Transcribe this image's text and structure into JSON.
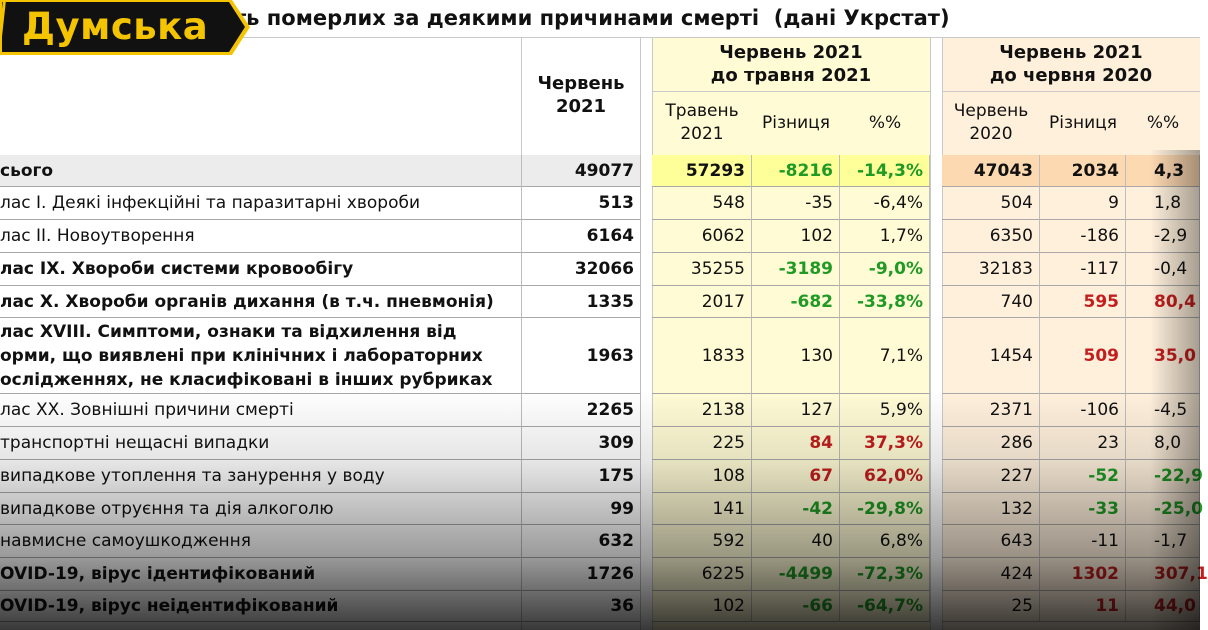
{
  "title": "ть померлих за деякими причинами смерті  (дані Укрстат)",
  "logo": {
    "text": "Думська",
    "text_color": "#f5c400",
    "bg_color": "#111111"
  },
  "colors": {
    "yellow_bg": "#fffbd5",
    "orange_bg": "#fff0dc",
    "total_yellow": "#ffff99",
    "total_orange": "#fdd9b2",
    "green": "#1f9a24",
    "red": "#c21e1e"
  },
  "header": {
    "col_june": "Червень\n2021",
    "group1": "Червень 2021\nдо травня 2021",
    "group1_sub": [
      "Травень\n2021",
      "Різниця",
      "%%"
    ],
    "group2": "Червень 2021\nдо червня 2020",
    "group2_sub": [
      "Червень\n2020",
      "Різниця",
      "%%"
    ]
  },
  "rows": [
    {
      "name": "сього",
      "bold": true,
      "total": true,
      "june": "49077",
      "may": "57293",
      "diff1": "-8216",
      "pct1": "-14,3%",
      "c1": "g",
      "june20": "47043",
      "diff2": "2034",
      "pct2": "4,3",
      "c2": ""
    },
    {
      "name": "лас I. Деякі інфекційні та паразитарні хвороби",
      "bold": false,
      "june": "513",
      "may": "548",
      "diff1": "-35",
      "pct1": "-6,4%",
      "c1": "",
      "june20": "504",
      "diff2": "9",
      "pct2": "1,8",
      "c2": ""
    },
    {
      "name": "лас II. Новоутворення",
      "bold": false,
      "june": "6164",
      "may": "6062",
      "diff1": "102",
      "pct1": "1,7%",
      "c1": "",
      "june20": "6350",
      "diff2": "-186",
      "pct2": "-2,9",
      "c2": ""
    },
    {
      "name": "лас IX. Хвороби системи кровообігу",
      "bold": true,
      "june": "32066",
      "may": "35255",
      "diff1": "-3189",
      "pct1": "-9,0%",
      "c1": "g",
      "june20": "32183",
      "diff2": "-117",
      "pct2": "-0,4",
      "c2": ""
    },
    {
      "name": "лас X. Хвороби органів дихання (в т.ч. пневмонія)",
      "bold": true,
      "june": "1335",
      "may": "2017",
      "diff1": "-682",
      "pct1": "-33,8%",
      "c1": "g",
      "june20": "740",
      "diff2": "595",
      "pct2": "80,4",
      "c2": "r"
    },
    {
      "name": "лас XVIII. Симптоми, ознаки та відхилення від\nорми, що виявлені при клінічних і лабораторних\nослідженнях, не класифіковані в інших рубриках",
      "bold": true,
      "june": "1963",
      "may": "1833",
      "diff1": "130",
      "pct1": "7,1%",
      "c1": "",
      "june20": "1454",
      "diff2": "509",
      "pct2": "35,0",
      "c2": "r"
    },
    {
      "name": "лас XX. Зовнішні причини смерті",
      "bold": false,
      "june": "2265",
      "may": "2138",
      "diff1": "127",
      "pct1": "5,9%",
      "c1": "",
      "june20": "2371",
      "diff2": "-106",
      "pct2": "-4,5",
      "c2": ""
    },
    {
      "name": "транспортні нещасні випадки",
      "bold": false,
      "june": "309",
      "may": "225",
      "diff1": "84",
      "pct1": "37,3%",
      "c1": "r",
      "june20": "286",
      "diff2": "23",
      "pct2": "8,0",
      "c2": ""
    },
    {
      "name": "випадкове утоплення та занурення у воду",
      "bold": false,
      "june": "175",
      "may": "108",
      "diff1": "67",
      "pct1": "62,0%",
      "c1": "r",
      "june20": "227",
      "diff2": "-52",
      "pct2": "-22,9",
      "c2": "g"
    },
    {
      "name": "випадкове отруєння та дія алкоголю",
      "bold": false,
      "june": "99",
      "may": "141",
      "diff1": "-42",
      "pct1": "-29,8%",
      "c1": "g",
      "june20": "132",
      "diff2": "-33",
      "pct2": "-25,0",
      "c2": "g"
    },
    {
      "name": "навмисне самоушкодження",
      "bold": false,
      "june": "632",
      "may": "592",
      "diff1": "40",
      "pct1": "6,8%",
      "c1": "",
      "june20": "643",
      "diff2": "-11",
      "pct2": "-1,7",
      "c2": ""
    },
    {
      "name": "OVID-19, вірус ідентифікований",
      "bold": true,
      "june": "1726",
      "may": "6225",
      "diff1": "-4499",
      "pct1": "-72,3%",
      "c1": "g",
      "june20": "424",
      "diff2": "1302",
      "pct2": "307,1",
      "c2": "r"
    },
    {
      "name": "OVID-19, вірус неідентифікований",
      "bold": true,
      "june": "36",
      "may": "102",
      "diff1": "-66",
      "pct1": "-64,7%",
      "c1": "g",
      "june20": "25",
      "diff2": "11",
      "pct2": "44,0",
      "c2": "r"
    }
  ]
}
